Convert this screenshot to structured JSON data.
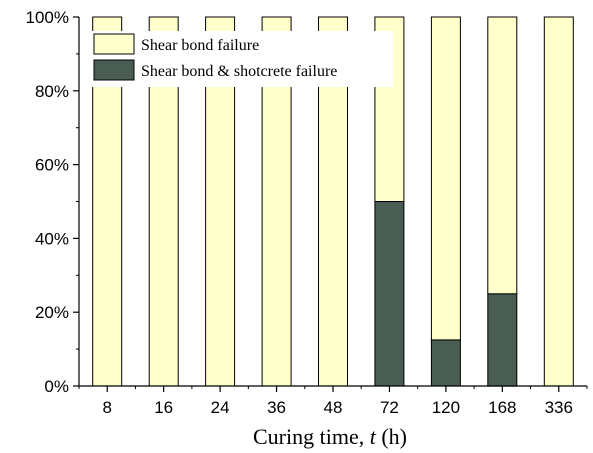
{
  "chart_data": {
    "type": "bar",
    "stacked": true,
    "categories": [
      "8",
      "16",
      "24",
      "36",
      "48",
      "72",
      "120",
      "168",
      "336"
    ],
    "series": [
      {
        "name": "Shear bond failure",
        "color": "#FFFFCC",
        "values": [
          100,
          100,
          100,
          100,
          100,
          50,
          87.5,
          75,
          100
        ]
      },
      {
        "name": "Shear bond & shotcrete failure",
        "color": "#4A5D52",
        "values": [
          0,
          0,
          0,
          0,
          0,
          50,
          12.5,
          25,
          0
        ]
      }
    ],
    "stack_order_bottom_to_top": [
      "Shear bond & shotcrete failure",
      "Shear bond failure"
    ],
    "xlabel": {
      "text": "Curing time, ",
      "italic_var": "t",
      "unit": " (h)"
    },
    "ylabel": "",
    "ylim": [
      0,
      100
    ],
    "yticks": [
      "0%",
      "20%",
      "40%",
      "60%",
      "80%",
      "100%"
    ],
    "legend_position": "top-left",
    "grid": false
  }
}
